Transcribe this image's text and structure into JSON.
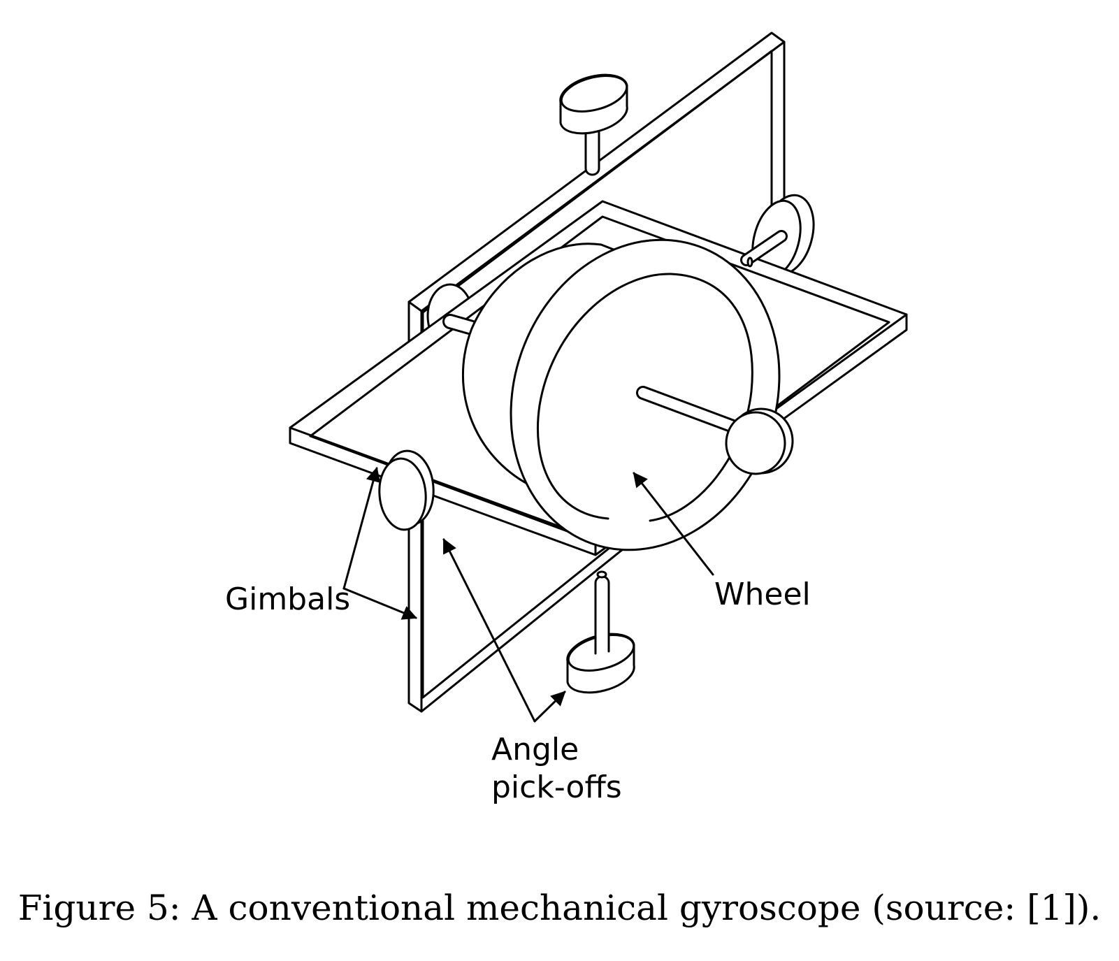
{
  "labels": {
    "gimbals": "Gimbals",
    "wheel": "Wheel",
    "angle_line1": "Angle",
    "angle_line2": "pick-offs"
  },
  "caption": "Figure 5: A conventional mechanical gyroscope (source: [1])."
}
